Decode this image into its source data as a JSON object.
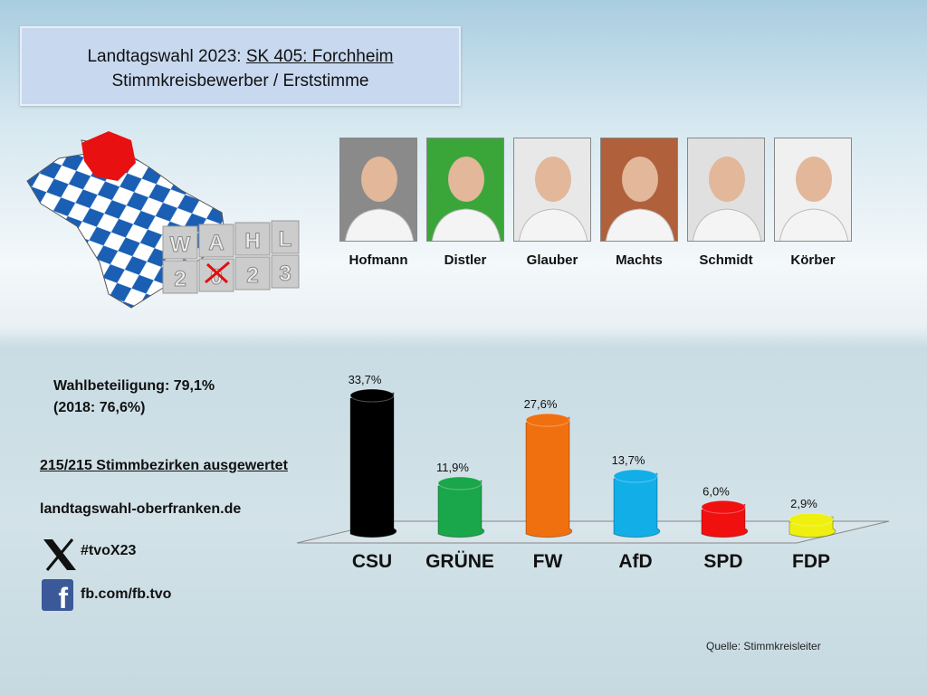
{
  "header": {
    "title_prefix": "Landtagswahl 2023: ",
    "title_link": "SK 405: Forchheim",
    "subtitle": "Stimmkreisbewerber / Erststimme"
  },
  "logo": {
    "tiles_top": [
      "W",
      "A",
      "H",
      "L"
    ],
    "tiles_bottom": [
      "2",
      "0",
      "2",
      "3"
    ]
  },
  "candidates": [
    {
      "name": "Hofmann",
      "bg": "#8a8a8a"
    },
    {
      "name": "Distler",
      "bg": "#3aa63a"
    },
    {
      "name": "Glauber",
      "bg": "#e8e8e8"
    },
    {
      "name": "Machts",
      "bg": "#b0603a"
    },
    {
      "name": "Schmidt",
      "bg": "#e0e0e0"
    },
    {
      "name": "Körber",
      "bg": "#f0f0f0"
    }
  ],
  "info": {
    "turnout": "Wahlbeteiligung: 79,1%",
    "turnout_prev": "(2018: 76,6%)",
    "counted": "215/215 Stimmbezirken ausgewertet",
    "website": "landtagswahl-oberfranken.de",
    "twitter": "#tvoX23",
    "facebook": "fb.com/fb.tvo"
  },
  "source": "Quelle: Stimmkreisleiter",
  "chart_data": {
    "type": "bar",
    "categories": [
      "CSU",
      "GRÜNE",
      "FW",
      "AfD",
      "SPD",
      "FDP"
    ],
    "values": [
      33.7,
      11.9,
      27.6,
      13.7,
      6.0,
      2.9
    ],
    "labels": [
      "33,7%",
      "11,9%",
      "27,6%",
      "13,7%",
      "6,0%",
      "2,9%"
    ],
    "colors": [
      "#000000",
      "#1aa64a",
      "#f07010",
      "#12aee8",
      "#f01010",
      "#f0f010"
    ],
    "unit": "%",
    "grid": false
  }
}
